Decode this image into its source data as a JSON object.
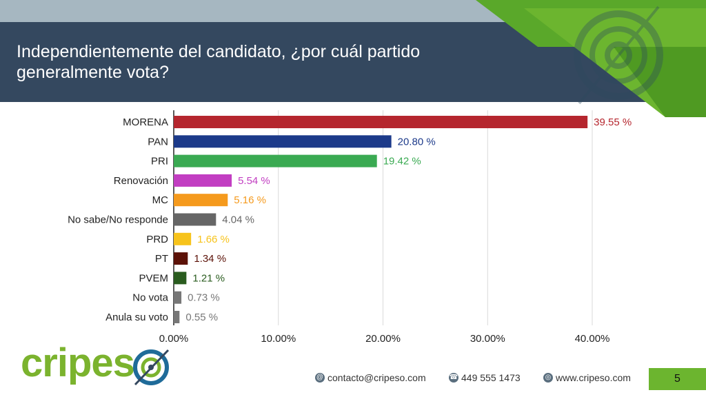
{
  "title_lines": [
    "Independientemente del candidato, ¿por cuál partido",
    "generalmente vota?"
  ],
  "chart_data": {
    "type": "bar",
    "orientation": "horizontal",
    "categories": [
      "MORENA",
      "PAN",
      "PRI",
      "Renovación",
      "MC",
      "No sabe/No responde",
      "PRD",
      "PT",
      "PVEM",
      "No vota",
      "Anula su voto"
    ],
    "values": [
      39.55,
      20.8,
      19.42,
      5.54,
      5.16,
      4.04,
      1.66,
      1.34,
      1.21,
      0.73,
      0.55
    ],
    "value_labels": [
      "39.55 %",
      "20.80 %",
      "19.42 %",
      "5.54 %",
      "5.16 %",
      "4.04 %",
      "1.66 %",
      "1.34 %",
      "1.21 %",
      "0.73 %",
      "0.55 %"
    ],
    "colors": [
      "#b5262e",
      "#1c3a8a",
      "#3aaa52",
      "#c23ec2",
      "#f59a1d",
      "#666666",
      "#f7c31b",
      "#5c1208",
      "#2a5c1f",
      "#777777",
      "#777777"
    ],
    "x_ticks": [
      "0.00%",
      "10.00%",
      "20.00%",
      "30.00%",
      "40.00%"
    ],
    "xlim": [
      0,
      40
    ],
    "grid": true
  },
  "logo": {
    "part1": "cripes",
    "part2": ""
  },
  "footer": {
    "email": "contacto@cripeso.com",
    "phone": "449 555 1473",
    "website": "www.cripeso.com"
  },
  "page_number": "5"
}
